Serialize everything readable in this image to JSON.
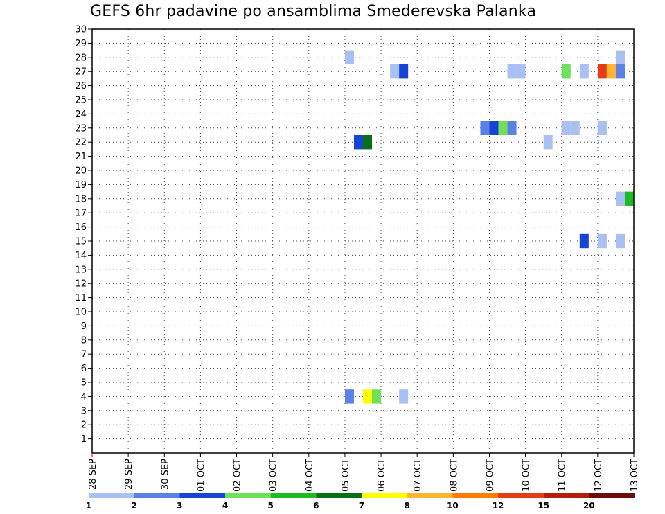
{
  "chart_data": {
    "type": "heatmap",
    "title": "GEFS 6hr padavine po ansamblima Smederevska Palanka",
    "xlabel": "",
    "ylabel": "",
    "x_dates": [
      "28 SEP",
      "29 SEP",
      "30 SEP",
      "01 OCT",
      "02 OCT",
      "03 OCT",
      "04 OCT",
      "05 OCT",
      "06 OCT",
      "07 OCT",
      "08 OCT",
      "09 OCT",
      "10 OCT",
      "11 OCT",
      "12 OCT",
      "13 OCT"
    ],
    "xlim": [
      0,
      15
    ],
    "ylim": [
      0,
      30
    ],
    "y_ticks": [
      1,
      2,
      3,
      4,
      5,
      6,
      7,
      8,
      9,
      10,
      11,
      12,
      13,
      14,
      15,
      16,
      17,
      18,
      19,
      20,
      21,
      22,
      23,
      24,
      25,
      26,
      27,
      28,
      29,
      30
    ],
    "grid": true,
    "legend": {
      "placement": "bottom",
      "labels": [
        "1",
        "2",
        "3",
        "4",
        "5",
        "6",
        "7",
        "8",
        "10",
        "12",
        "15",
        "20"
      ],
      "colors": [
        "#aabff2",
        "#5a82e6",
        "#1743d6",
        "#6fe05a",
        "#1dbd22",
        "#0a6e14",
        "#ffff00",
        "#ffb432",
        "#ff7d00",
        "#e63c14",
        "#b41e0a",
        "#6e0a0a"
      ]
    },
    "cells": [
      {
        "day": 7.0,
        "member": 28,
        "mm": 1
      },
      {
        "day": 7.0,
        "member": 4,
        "mm": 2
      },
      {
        "day": 7.25,
        "member": 22,
        "mm": 3
      },
      {
        "day": 7.5,
        "member": 22,
        "mm": 6
      },
      {
        "day": 7.5,
        "member": 4,
        "mm": 7
      },
      {
        "day": 7.75,
        "member": 4,
        "mm": 4
      },
      {
        "day": 8.25,
        "member": 27,
        "mm": 1
      },
      {
        "day": 8.5,
        "member": 27,
        "mm": 3
      },
      {
        "day": 8.5,
        "member": 4,
        "mm": 1
      },
      {
        "day": 10.75,
        "member": 23,
        "mm": 2
      },
      {
        "day": 11.0,
        "member": 23,
        "mm": 3
      },
      {
        "day": 11.25,
        "member": 23,
        "mm": 4
      },
      {
        "day": 11.5,
        "member": 23,
        "mm": 2
      },
      {
        "day": 11.5,
        "member": 27,
        "mm": 1
      },
      {
        "day": 11.75,
        "member": 27,
        "mm": 1
      },
      {
        "day": 12.5,
        "member": 22,
        "mm": 1
      },
      {
        "day": 13.0,
        "member": 27,
        "mm": 4
      },
      {
        "day": 13.0,
        "member": 23,
        "mm": 1
      },
      {
        "day": 13.25,
        "member": 23,
        "mm": 1
      },
      {
        "day": 13.5,
        "member": 27,
        "mm": 1
      },
      {
        "day": 13.5,
        "member": 15,
        "mm": 3
      },
      {
        "day": 14.0,
        "member": 27,
        "mm": 12
      },
      {
        "day": 14.0,
        "member": 23,
        "mm": 1
      },
      {
        "day": 14.0,
        "member": 15,
        "mm": 1
      },
      {
        "day": 14.25,
        "member": 27,
        "mm": 8
      },
      {
        "day": 14.5,
        "member": 28,
        "mm": 1
      },
      {
        "day": 14.5,
        "member": 27,
        "mm": 2
      },
      {
        "day": 14.5,
        "member": 15,
        "mm": 1
      },
      {
        "day": 14.5,
        "member": 18,
        "mm": 1
      },
      {
        "day": 14.75,
        "member": 18,
        "mm": 5
      }
    ]
  }
}
